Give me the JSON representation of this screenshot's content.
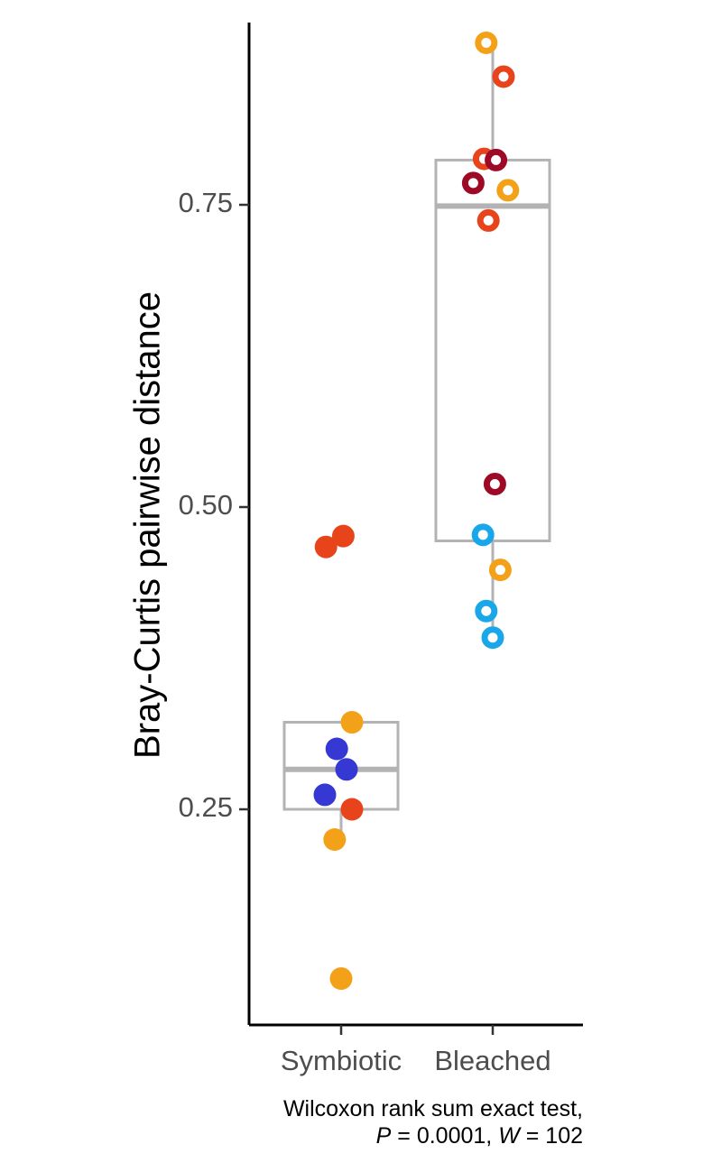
{
  "chart_data": {
    "type": "scatter",
    "subtype": "boxplot-with-jittered-points",
    "ylabel": "Bray-Curtis pairwise distance",
    "xlabel": "",
    "categories": [
      "Symbiotic",
      "Bleached"
    ],
    "y_ticks": [
      {
        "value": 0.25,
        "label": "0.25"
      },
      {
        "value": 0.5,
        "label": "0.50"
      },
      {
        "value": 0.75,
        "label": "0.75"
      }
    ],
    "ylim": [
      0.1,
      0.905
    ],
    "grid": false,
    "legend": "none",
    "box_color": "#b3b3b3",
    "boxes": [
      {
        "category": "Symbiotic",
        "q1": 0.25,
        "median": 0.283,
        "q3": 0.322,
        "whisker_low": 0.225,
        "whisker_high": 0.322
      },
      {
        "category": "Bleached",
        "q1": 0.472,
        "median": 0.749,
        "q3": 0.787,
        "whisker_low": 0.392,
        "whisker_high": 0.884
      }
    ],
    "points": [
      {
        "category": "Symbiotic",
        "jitter": -0.14,
        "y": 0.467,
        "color": "#e8441c",
        "hollow": false
      },
      {
        "category": "Symbiotic",
        "jitter": 0.02,
        "y": 0.476,
        "color": "#e8441c",
        "hollow": false
      },
      {
        "category": "Symbiotic",
        "jitter": 0.1,
        "y": 0.322,
        "color": "#f4a11a",
        "hollow": false
      },
      {
        "category": "Symbiotic",
        "jitter": -0.04,
        "y": 0.3,
        "color": "#3538d3",
        "hollow": false
      },
      {
        "category": "Symbiotic",
        "jitter": 0.05,
        "y": 0.283,
        "color": "#3538d3",
        "hollow": false
      },
      {
        "category": "Symbiotic",
        "jitter": -0.15,
        "y": 0.262,
        "color": "#3538d3",
        "hollow": false
      },
      {
        "category": "Symbiotic",
        "jitter": 0.1,
        "y": 0.25,
        "color": "#e8441c",
        "hollow": false
      },
      {
        "category": "Symbiotic",
        "jitter": -0.06,
        "y": 0.225,
        "color": "#f4a11a",
        "hollow": false
      },
      {
        "category": "Symbiotic",
        "jitter": 0.0,
        "y": 0.11,
        "color": "#f4a11a",
        "hollow": false
      },
      {
        "category": "Bleached",
        "jitter": -0.06,
        "y": 0.884,
        "color": "#f4a11a",
        "hollow": true
      },
      {
        "category": "Bleached",
        "jitter": 0.1,
        "y": 0.856,
        "color": "#e8441c",
        "hollow": true
      },
      {
        "category": "Bleached",
        "jitter": -0.08,
        "y": 0.788,
        "color": "#e8441c",
        "hollow": true
      },
      {
        "category": "Bleached",
        "jitter": 0.03,
        "y": 0.787,
        "color": "#9e0a25",
        "hollow": true
      },
      {
        "category": "Bleached",
        "jitter": -0.18,
        "y": 0.768,
        "color": "#9e0a25",
        "hollow": true
      },
      {
        "category": "Bleached",
        "jitter": 0.14,
        "y": 0.762,
        "color": "#f4a11a",
        "hollow": true
      },
      {
        "category": "Bleached",
        "jitter": -0.04,
        "y": 0.737,
        "color": "#e8441c",
        "hollow": true
      },
      {
        "category": "Bleached",
        "jitter": 0.02,
        "y": 0.519,
        "color": "#9e0a25",
        "hollow": true
      },
      {
        "category": "Bleached",
        "jitter": -0.09,
        "y": 0.477,
        "color": "#1aa7ea",
        "hollow": true
      },
      {
        "category": "Bleached",
        "jitter": 0.07,
        "y": 0.448,
        "color": "#f4a11a",
        "hollow": true
      },
      {
        "category": "Bleached",
        "jitter": -0.06,
        "y": 0.414,
        "color": "#1aa7ea",
        "hollow": true
      },
      {
        "category": "Bleached",
        "jitter": 0.0,
        "y": 0.392,
        "color": "#1aa7ea",
        "hollow": true
      }
    ],
    "annotation": {
      "line1": "Wilcoxon rank sum exact test,",
      "p_symbol": "P",
      "p_value": " = 0.0001, ",
      "w_symbol": "W",
      "w_value": " = 102"
    }
  }
}
